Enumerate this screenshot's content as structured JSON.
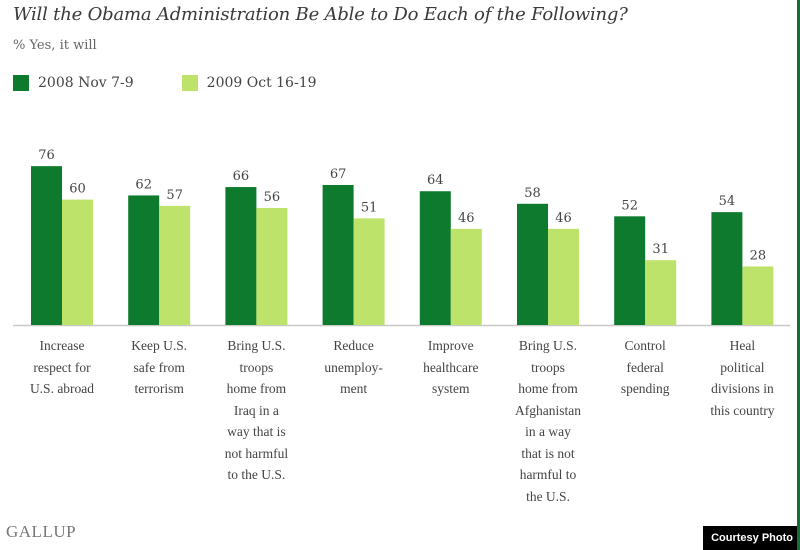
{
  "title": "Will the Obama Administration Be Able to Do Each of the Following?",
  "subtitle": "% Yes, it will",
  "footer": {
    "brand": "GALLUP",
    "credit": "Courtesy Photo"
  },
  "colors": {
    "series1": "#0e7a2e",
    "series2": "#bde36a",
    "baseline": "#c8c8c8",
    "border": "#1a6b3a"
  },
  "chart_data": {
    "type": "bar",
    "title": "Will the Obama Administration Be Able to Do Each of the Following?",
    "subtitle": "% Yes, it will",
    "xlabel": "",
    "ylabel": "",
    "ylim": [
      0,
      80
    ],
    "grid": false,
    "legend_position": "top-left",
    "categories": [
      "Increase respect for U.S. abroad",
      "Keep U.S. safe from terrorism",
      "Bring U.S. troops home from Iraq in a way that is not harmful to the U.S.",
      "Reduce unemploy- ment",
      "Improve healthcare system",
      "Bring U.S. troops home from Afghanistan in a way that is not harmful to the U.S.",
      "Control federal spending",
      "Heal political divisions in this country"
    ],
    "category_lines": [
      [
        "Increase",
        "respect for",
        "U.S. abroad"
      ],
      [
        "Keep U.S.",
        "safe from",
        "terrorism"
      ],
      [
        "Bring U.S.",
        "troops",
        "home from",
        "Iraq in a",
        "way that is",
        "not harmful",
        "to the U.S."
      ],
      [
        "Reduce",
        "unemploy-",
        "ment"
      ],
      [
        "Improve",
        "healthcare",
        "system"
      ],
      [
        "Bring U.S.",
        "troops",
        "home from",
        "Afghanistan",
        "in a way",
        "that is not",
        "harmful to",
        "the U.S."
      ],
      [
        "Control",
        "federal",
        "spending"
      ],
      [
        "Heal",
        "political",
        "divisions in",
        "this country"
      ]
    ],
    "series": [
      {
        "name": "2008 Nov 7-9",
        "values": [
          76,
          62,
          66,
          67,
          64,
          58,
          52,
          54
        ]
      },
      {
        "name": "2009 Oct 16-19",
        "values": [
          60,
          57,
          56,
          51,
          46,
          46,
          31,
          28
        ]
      }
    ]
  }
}
